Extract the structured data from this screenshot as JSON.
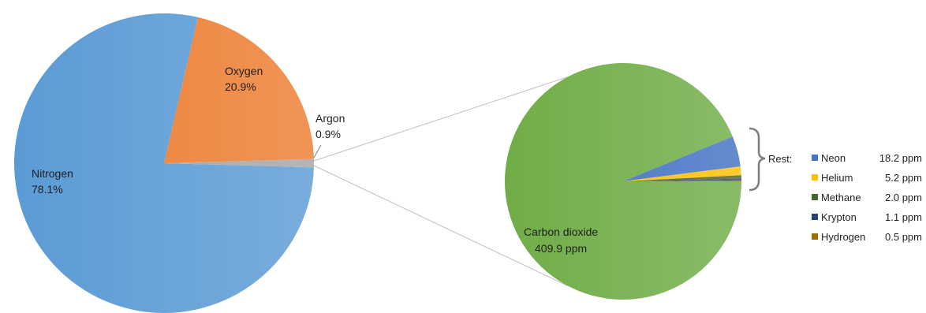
{
  "chart_data": [
    {
      "type": "pie",
      "unit": "%",
      "slices": [
        {
          "name": "Nitrogen",
          "value": 78.1,
          "label": "78.1%",
          "color": "#5b9bd5"
        },
        {
          "name": "Oxygen",
          "value": 20.9,
          "label": "20.9%",
          "color": "#ed7d31"
        },
        {
          "name": "Argon",
          "value": 0.9,
          "label": "0.9%",
          "color": "#a5a5a5"
        }
      ]
    },
    {
      "type": "pie",
      "unit": "ppm",
      "slices": [
        {
          "name": "Carbon dioxide",
          "value": 409.9,
          "label": "409.9 ppm",
          "color": "#70ad47"
        },
        {
          "name": "Neon",
          "value": 18.2,
          "label": "18.2 ppm",
          "color": "#4472c4"
        },
        {
          "name": "Helium",
          "value": 5.2,
          "label": "5.2 ppm",
          "color": "#ffc000"
        },
        {
          "name": "Methane",
          "value": 2.0,
          "label": "2.0 ppm",
          "color": "#43682b"
        },
        {
          "name": "Krypton",
          "value": 1.1,
          "label": "1.1 ppm",
          "color": "#264478"
        },
        {
          "name": "Hydrogen",
          "value": 0.5,
          "label": "0.5 ppm",
          "color": "#997300"
        }
      ],
      "legend_title": "Rest:",
      "legend_placement": "right"
    }
  ]
}
